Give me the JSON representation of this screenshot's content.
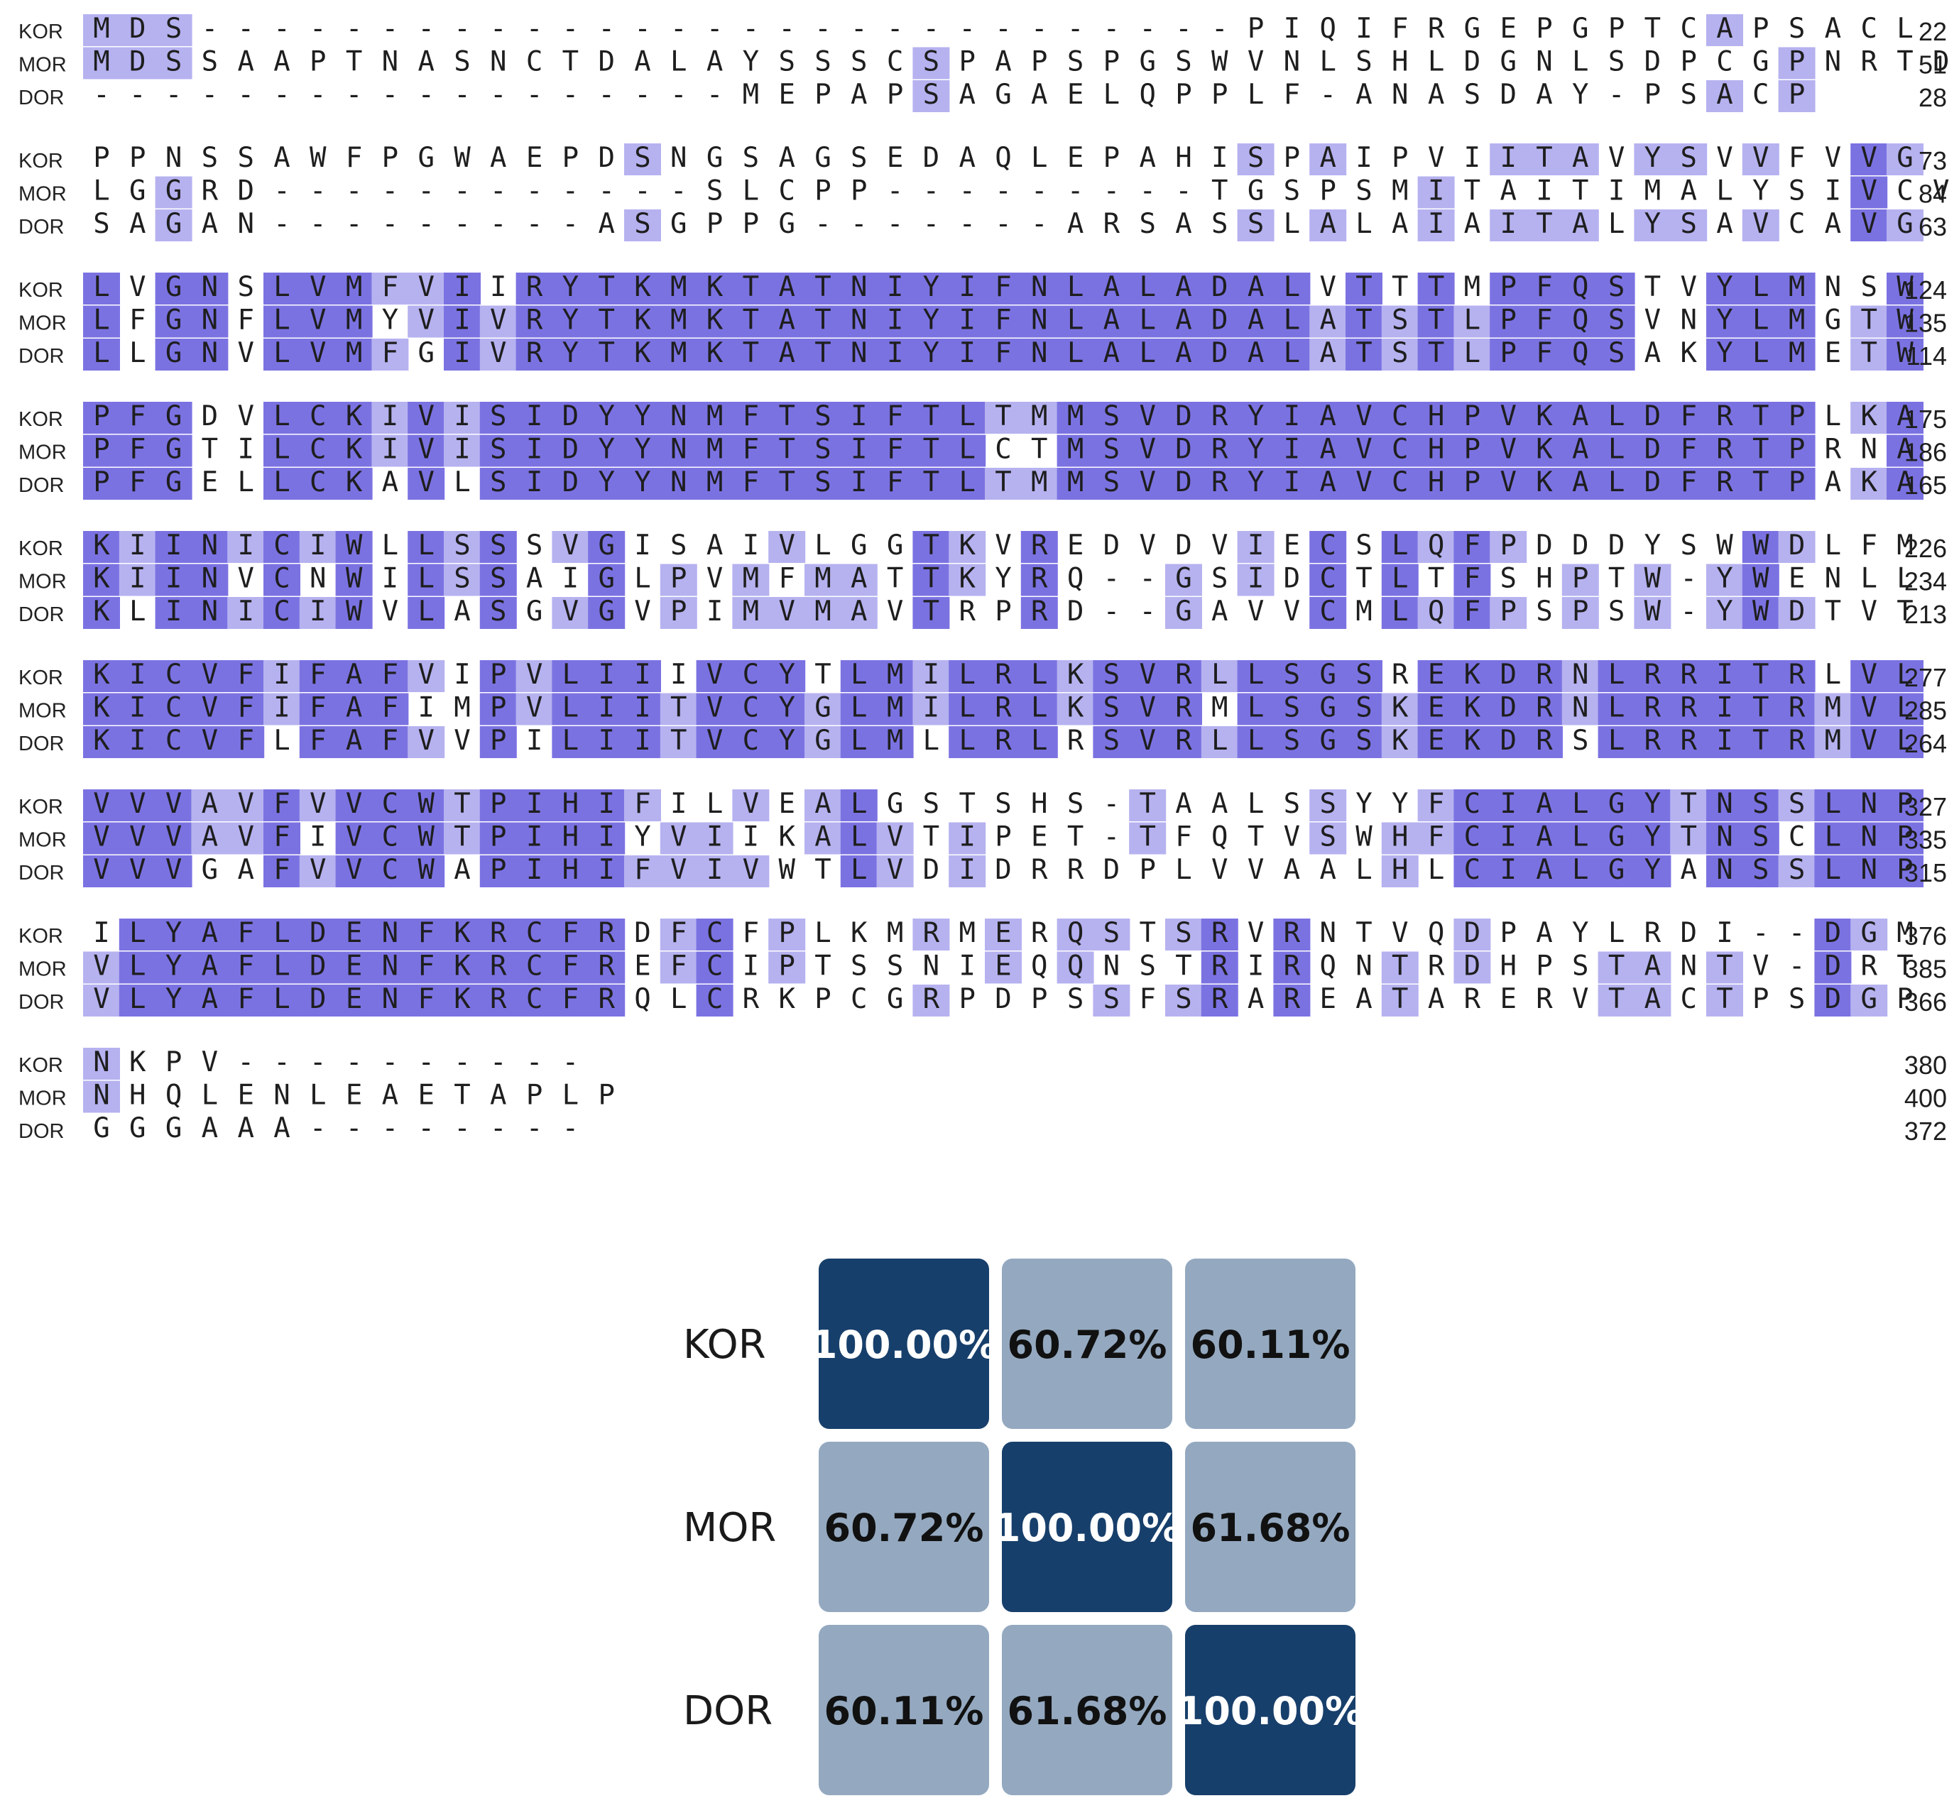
{
  "alignment": {
    "sequences": [
      "KOR",
      "MOR",
      "DOR"
    ],
    "blocks": [
      {
        "rows": [
          "MDS-----------------------------PIQIFRGEPGPTCAPSACL",
          "MDSSAAPTNASNCTDALAYSSSCSPAPSPGSWVNLSHLDGNLSDPCGPNRTD",
          "------------------MEPAPSAGAELQPPLF-ANASDAY-PSACP"
        ],
        "ends": [
          22,
          51,
          28
        ]
      },
      {
        "rows": [
          "PPNSSAWFPGWAEPDSNGSAGSEDAQLEPAHISPAIPVIITAVYSVVFVVG",
          "LGGRD------------SLCPP---------TGSPSMITAITIMALYSIVCVVG",
          "SAGAN---------ASGPPG-------ARSASSLALAIAITALYSAVCAVG"
        ],
        "ends": [
          73,
          84,
          63
        ]
      },
      {
        "rows": [
          "LVGNSLVMFVIIRYTKMKTATNIYIFNLALADALVTTTMPFQSTVYLMNSW",
          "LFGNFLVMYVIVRYTKMKTATNIYIFNLALADALATSTLPFQSVNYLMGTW",
          "LLGNVLVMFGIVRYTKMKTATNIYIFNLALADALATSTLPFQSAKYLMETW"
        ],
        "ends": [
          124,
          135,
          114
        ]
      },
      {
        "rows": [
          "PFGDVLCKIVISIDYYNMFTSIFTLTMMSVDRYIAVCHPVKALDFRTPLKA",
          "PFGTILCKIVISIDYYNMFTSIFTLCTMSVDRYIAVCHPVKALDFRTPRNA",
          "PFGELLCKAVLSIDYYNMFTSIFTLTMMSVDRYIAVCHPVKALDFRTPAKA"
        ],
        "ends": [
          175,
          186,
          165
        ]
      },
      {
        "rows": [
          "KIINICIWLLSSSVGISAIVLGGTKVREDVDVIECSLQFPDDDYSWWDLFM",
          "KIINVCNWILSSAIGLPVMFMATTKYRQ--GSIDCTLTFSHPTW-YWENLL",
          "KLINICIWVLASGVGVPIMVMAVTRPRD--GAVVCMLQFPSPSW-YWDTVT"
        ],
        "ends": [
          226,
          234,
          213
        ]
      },
      {
        "rows": [
          "KICVFIFAFVIPVLIIIVCYTLMILRLKSVRLLSGSREKDRNLRRITRLVL",
          "KICVFIFAFIMPVLIITVCYGLMILRLKSVRMLSGSKEKDRNLRRITRMVL",
          "KICVFLFAFVVPILIITVCYGLMLLRLRSVRLLSGSKEKDRSLRRITRMVL"
        ],
        "ends": [
          277,
          285,
          264
        ]
      },
      {
        "rows": [
          "VVVAVFVVCWTPIHIFILVEALGSTSHS-TAALSSYYFCIALGYTNSSLNP",
          "VVVAVFIVCWTPIHIYVIIKALVTIPET-TFQTVSWHFCIALGYTNSCLNP",
          "VVVGAFVVCWAPIHIFVIVWTLVDIDRRDPLVVAALHLCIALGYANSSLNP"
        ],
        "ends": [
          327,
          335,
          315
        ]
      },
      {
        "rows": [
          "ILYAFLDENFKRCFRDFCFPLKMRMERQSTSRVRNTVQDPAYLRDI--DGM",
          "VLYAFLDENFKRCFREFCIPTSSNIEQQNSTRIRQNTRDHPSTANTV-DRT",
          "VLYAFLDENFKRCFRQLCRKPCGRPDPSSFSRAREATARERVTACTPSDGP"
        ],
        "ends": [
          376,
          385,
          366
        ]
      },
      {
        "rows": [
          "NKPV----------",
          "NHQLENLEAETAPLP",
          "GGGAAA--------"
        ],
        "ends": [
          380,
          400,
          372
        ]
      }
    ]
  },
  "identity_matrix": {
    "row_labels": [
      "KOR",
      "MOR",
      "DOR"
    ],
    "cells": [
      [
        "100.00%",
        "60.72%",
        "60.11%"
      ],
      [
        "60.72%",
        "100.00%",
        "61.68%"
      ],
      [
        "60.11%",
        "61.68%",
        "100.00%"
      ]
    ]
  },
  "colors": {
    "conserved_all": "#7b72e2",
    "conserved_pair": "#b6b2f0",
    "matrix_diagonal": "#173f6b",
    "matrix_offdiag": "#94a9c0",
    "diag_text": "#ffffff",
    "offdiag_text": "#111111"
  }
}
